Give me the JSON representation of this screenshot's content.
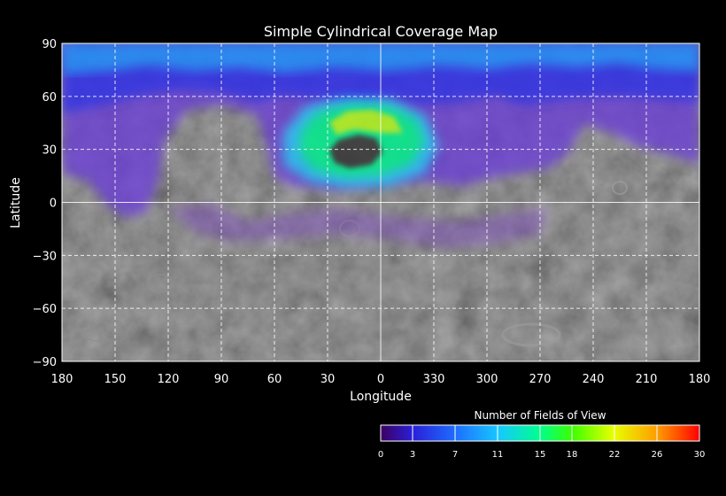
{
  "map": {
    "title": "Simple Cylindrical Coverage Map",
    "xlabel": "Longitude",
    "ylabel": "Latitude",
    "lon_ticks": [
      "180",
      "150",
      "120",
      "90",
      "60",
      "30",
      "0",
      "330",
      "300",
      "270",
      "240",
      "210",
      "180"
    ],
    "lat_ticks": [
      "90",
      "60",
      "30",
      "0",
      "−30",
      "−60",
      "−90"
    ],
    "grid": true,
    "background": "grayscale planetary basemap",
    "coverage_palette_low": "#3a005a",
    "coverage_palette_high": "#ff0000"
  },
  "colorbar": {
    "title": "Number of Fields of View",
    "min": 0,
    "max": 30,
    "tick_labels": [
      "0",
      "3",
      "7",
      "11",
      "15",
      "18",
      "22",
      "26",
      "30"
    ],
    "colors": [
      "#3c0060",
      "#2a1fd8",
      "#1e6bff",
      "#17c8ff",
      "#00ff8c",
      "#3cff00",
      "#e8ff00",
      "#ff9a00",
      "#ff0000"
    ]
  }
}
